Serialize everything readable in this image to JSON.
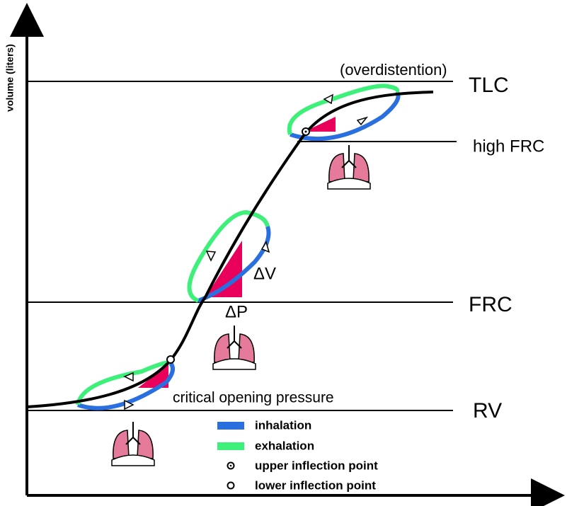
{
  "axis_label": "volume (liters)",
  "annotations": {
    "overdistention": "(overdistention)",
    "delta_v": "ΔV",
    "delta_p": "ΔP",
    "critical": "critical opening pressure"
  },
  "levels": {
    "tlc": "TLC",
    "high_frc": "high FRC",
    "frc": "FRC",
    "rv": "RV"
  },
  "legend": {
    "inhalation": "inhalation",
    "exhalation": "exhalation",
    "upper": "upper inflection point",
    "lower": "lower inflection point"
  }
}
